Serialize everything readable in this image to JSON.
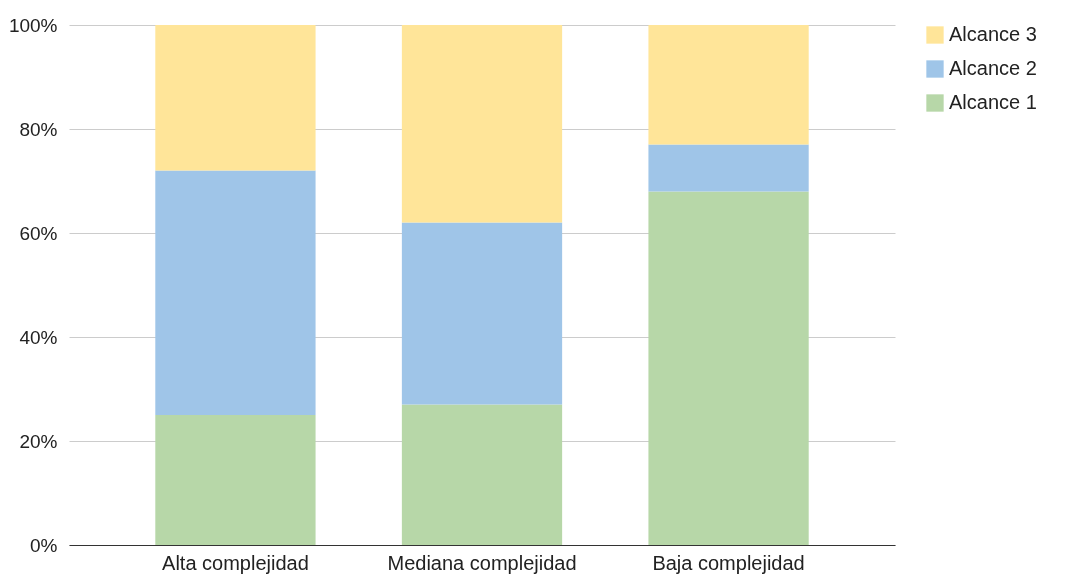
{
  "chart_data": {
    "type": "bar",
    "stacked": true,
    "categories": [
      "Alta complejidad",
      "Mediana complejidad",
      "Baja complejidad"
    ],
    "series": [
      {
        "name": "Alcance 1",
        "color": "#b7d7a8",
        "values": [
          25,
          27,
          68
        ]
      },
      {
        "name": "Alcance 2",
        "color": "#9fc5e8",
        "values": [
          47,
          35,
          9
        ]
      },
      {
        "name": "Alcance 3",
        "color": "#ffe599",
        "values": [
          28,
          38,
          23
        ]
      }
    ],
    "ylim": [
      0,
      100
    ],
    "yticks": [
      {
        "value": 0,
        "label": "0%"
      },
      {
        "value": 20,
        "label": "20%"
      },
      {
        "value": 40,
        "label": "40%"
      },
      {
        "value": 60,
        "label": "60%"
      },
      {
        "value": 80,
        "label": "80%"
      },
      {
        "value": 100,
        "label": "100%"
      }
    ],
    "grid": "y",
    "legend": "top right"
  }
}
